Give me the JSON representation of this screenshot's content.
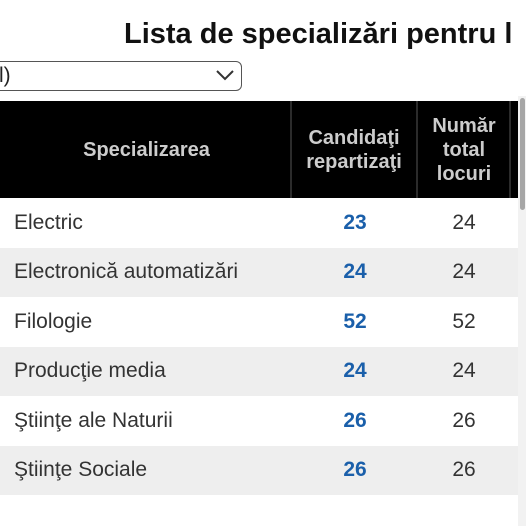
{
  "page": {
    "title": "Lista de specializări pentru l"
  },
  "filter": {
    "selected_value": "l)",
    "icon": "chevron-down-icon"
  },
  "table": {
    "headers": [
      [
        "Specializarea"
      ],
      [
        "Candidaţi",
        "repartizaţi"
      ],
      [
        "Număr",
        "total",
        "locuri"
      ]
    ],
    "rows": [
      {
        "name": "Electric",
        "candidates": "23",
        "total": "24"
      },
      {
        "name": "Electronică automatizări",
        "candidates": "24",
        "total": "24"
      },
      {
        "name": "Filologie",
        "candidates": "52",
        "total": "52"
      },
      {
        "name": "Producţie media",
        "candidates": "24",
        "total": "24"
      },
      {
        "name": "Ştiinţe ale Naturii",
        "candidates": "26",
        "total": "26"
      },
      {
        "name": "Ştiinţe Sociale",
        "candidates": "26",
        "total": "26"
      }
    ]
  },
  "colors": {
    "header_bg": "#000000",
    "header_text": "#cccccc",
    "candidates_text": "#1a5faa",
    "alt_row_bg": "#eeeeee"
  }
}
